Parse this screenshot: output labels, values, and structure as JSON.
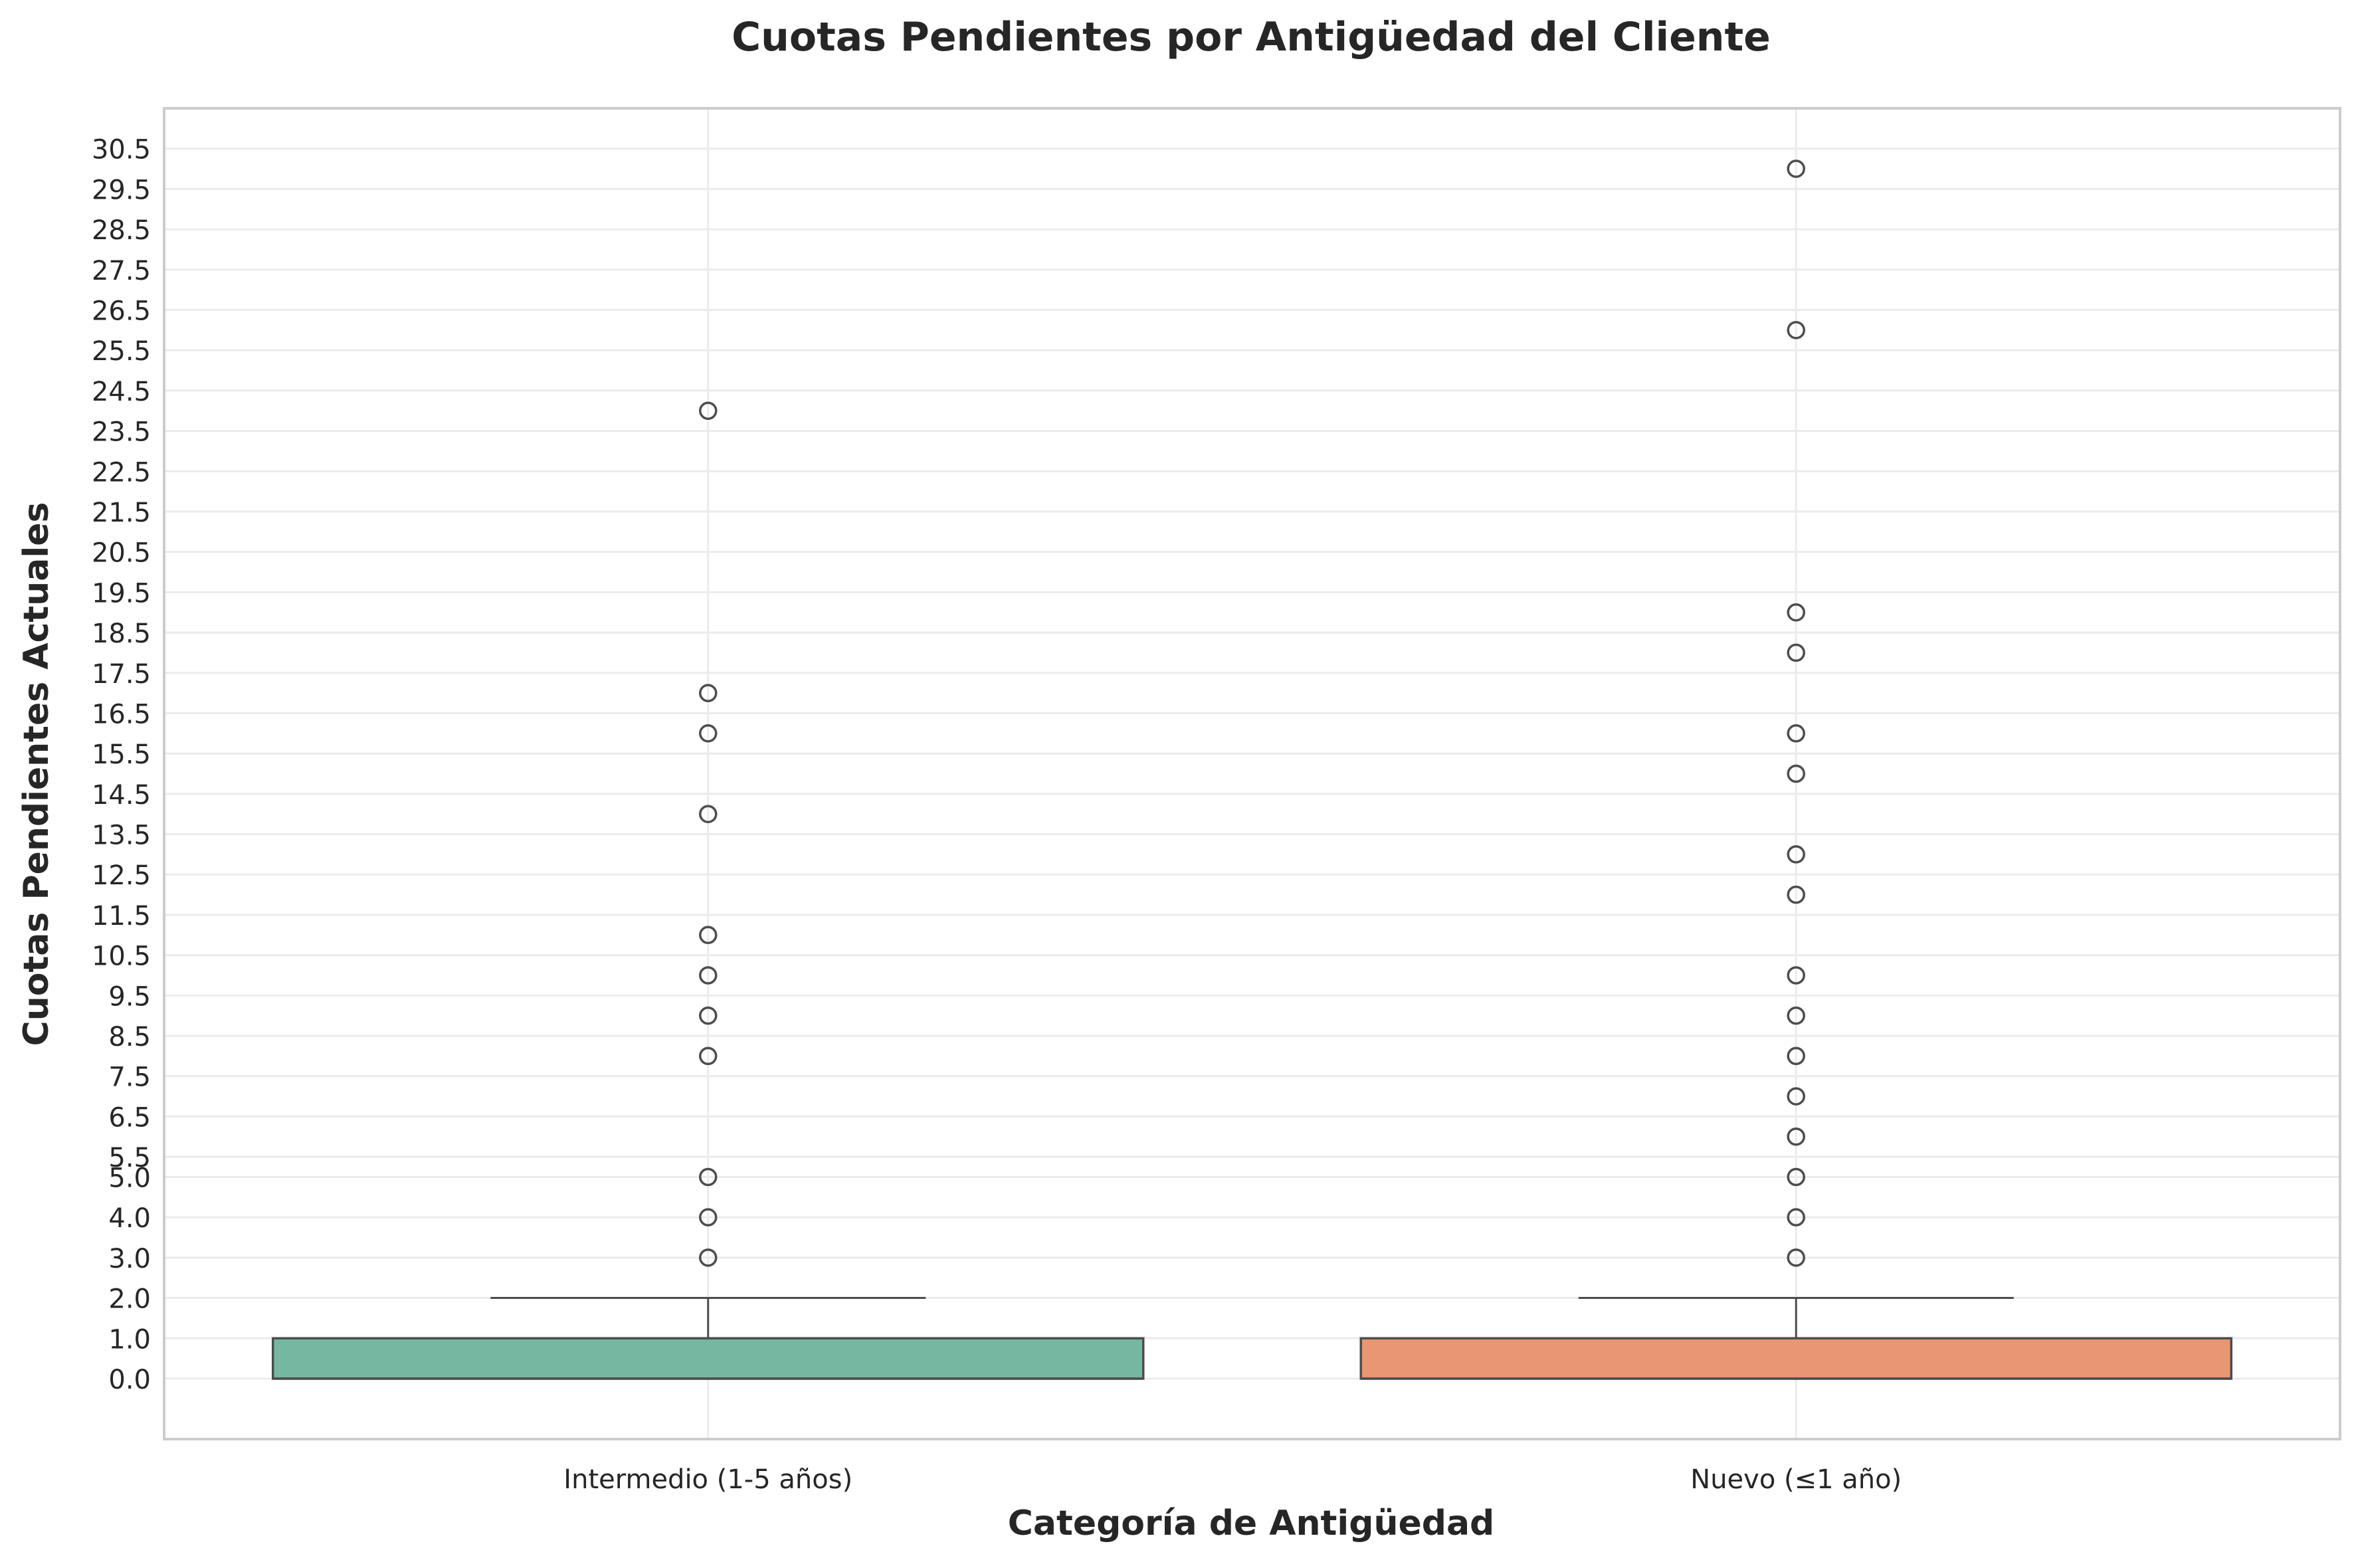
{
  "chart_data": {
    "type": "box",
    "title": "Cuotas Pendientes por Antigüedad del Cliente",
    "xlabel": "Categoría de Antigüedad",
    "ylabel": "Cuotas Pendientes Actuales",
    "ylim": [
      -1.5,
      31.5
    ],
    "yticks": [
      0.0,
      1.0,
      2.0,
      3.0,
      4.0,
      5.0,
      5.5,
      6.5,
      7.5,
      8.5,
      9.5,
      10.5,
      11.5,
      12.5,
      13.5,
      14.5,
      15.5,
      16.5,
      17.5,
      18.5,
      19.5,
      20.5,
      21.5,
      22.5,
      23.5,
      24.5,
      25.5,
      26.5,
      27.5,
      28.5,
      29.5,
      30.5
    ],
    "ytick_labels": [
      "0.0",
      "1.0",
      "2.0",
      "3.0",
      "4.0",
      "5.0",
      "5.5",
      "6.5",
      "7.5",
      "8.5",
      "9.5",
      "10.5",
      "11.5",
      "12.5",
      "13.5",
      "14.5",
      "15.5",
      "16.5",
      "17.5",
      "18.5",
      "19.5",
      "20.5",
      "21.5",
      "22.5",
      "23.5",
      "24.5",
      "25.5",
      "26.5",
      "27.5",
      "28.5",
      "29.5",
      "30.5"
    ],
    "grid": true,
    "categories": [
      "Intermedio (1-5 años)",
      "Nuevo (≤1 año)"
    ],
    "series": [
      {
        "category": "Intermedio (1-5 años)",
        "color": "#76b7a2",
        "q1": 0,
        "median": 0,
        "q3": 1,
        "whisker_low": 0,
        "whisker_high": 2,
        "outliers": [
          3,
          4,
          5,
          8,
          9,
          10,
          11,
          14,
          16,
          17,
          24
        ]
      },
      {
        "category": "Nuevo (≤1 año)",
        "color": "#e99675",
        "q1": 0,
        "median": 0,
        "q3": 1,
        "whisker_low": 0,
        "whisker_high": 2,
        "outliers": [
          3,
          4,
          5,
          6,
          7,
          8,
          9,
          10,
          12,
          13,
          15,
          16,
          18,
          19,
          26,
          30
        ]
      }
    ]
  }
}
